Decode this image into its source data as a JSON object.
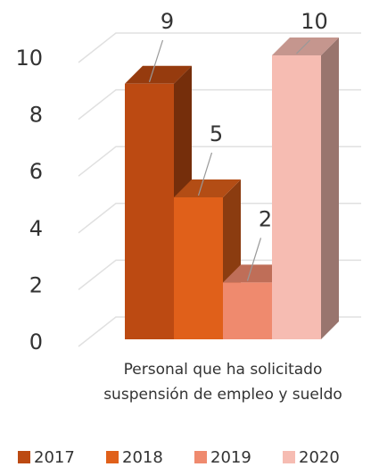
{
  "chart_data": {
    "type": "bar3d",
    "categories": [
      "Personal que ha solicitado suspensión de empleo y sueldo"
    ],
    "series": [
      {
        "name": "2017",
        "color": "#bc4a12",
        "values": [
          9
        ]
      },
      {
        "name": "2018",
        "color": "#e0601a",
        "values": [
          5
        ]
      },
      {
        "name": "2019",
        "color": "#ef8a6e",
        "values": [
          2
        ]
      },
      {
        "name": "2020",
        "color": "#f6bcb2",
        "values": [
          10
        ]
      }
    ],
    "ylim": [
      0,
      10
    ],
    "yticks": [
      0,
      2,
      4,
      6,
      8,
      10
    ],
    "grid": true,
    "legend": "bottom"
  }
}
